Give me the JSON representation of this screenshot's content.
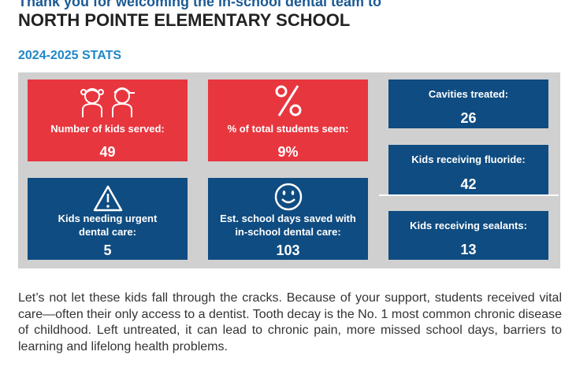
{
  "header": {
    "thanks_line": "Thank you for welcoming the in-school dental team to",
    "school_name": "NORTH POINTE ELEMENTARY SCHOOL"
  },
  "stats_title": "2024-2025 STATS",
  "cards": {
    "kids_served": {
      "label": "Number of kids served:",
      "value": "49",
      "icon": "kids-icon"
    },
    "percent_seen": {
      "label": "% of total students seen:",
      "value": "9%",
      "icon": "percent-icon"
    },
    "cavities": {
      "label": "Cavities treated:",
      "value": "26"
    },
    "fluoride": {
      "label": "Kids receiving fluoride:",
      "value": "42"
    },
    "urgent": {
      "label_line1": "Kids needing urgent",
      "label_line2": "dental care:",
      "value": "5",
      "icon": "warning-icon"
    },
    "days_saved": {
      "label_line1": "Est. school days saved with",
      "label_line2": "in-school dental care:",
      "value": "103",
      "icon": "smiley-icon"
    },
    "sealants": {
      "label": "Kids receiving sealants:",
      "value": "13"
    }
  },
  "colors": {
    "red": "#e8363f",
    "blue": "#0f4c81",
    "panel": "#d0d0d0",
    "title_blue": "#1f86c8"
  },
  "paragraph": "Let’s not let these kids fall through the cracks. Because of your support, students received vital care—often their only access to a dentist. Tooth decay is the No. 1 most common chronic disease of childhood. Left untreated, it can lead to chronic pain, more missed school days, barriers to learning and lifelong health problems."
}
